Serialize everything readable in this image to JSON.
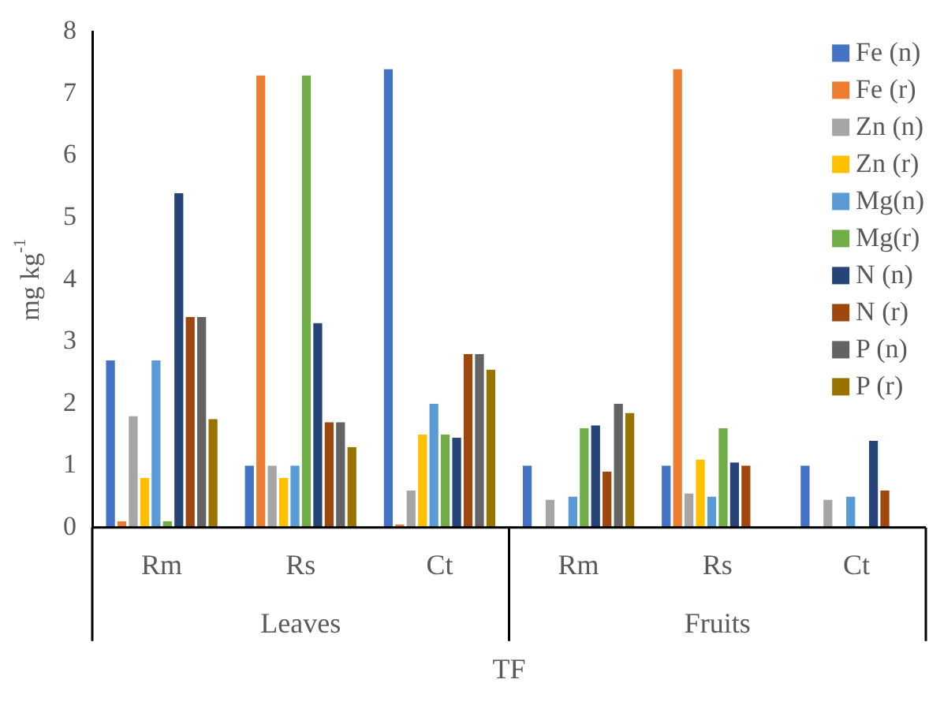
{
  "chart_data": {
    "type": "bar",
    "xlabel": "TF",
    "ylabel": "mg kg$^{-1}$",
    "categories": [
      "Rm",
      "Rs",
      "Ct",
      "Rm",
      "Rs",
      "Ct"
    ],
    "annotations": [
      "Leaves",
      "Fruits"
    ],
    "series": [
      {
        "name": "Fe (n)",
        "color": "#4472c4",
        "values": [
          2.7,
          1.0,
          7.4,
          1.0,
          1.0,
          1.0
        ]
      },
      {
        "name": "Fe (r)",
        "color": "#ed7d31",
        "values": [
          0.1,
          7.3,
          0.05,
          null,
          7.4,
          null
        ]
      },
      {
        "name": "Zn (n)",
        "color": "#a5a5a5",
        "values": [
          1.8,
          1.0,
          0.6,
          0.45,
          0.55,
          0.45
        ]
      },
      {
        "name": "Zn (r)",
        "color": "#ffc000",
        "values": [
          0.8,
          0.8,
          1.5,
          null,
          1.1,
          null
        ]
      },
      {
        "name": "Mg(n)",
        "color": "#5b9bd5",
        "values": [
          2.7,
          1.0,
          2.0,
          0.5,
          0.5,
          0.5
        ]
      },
      {
        "name": "Mg(r)",
        "color": "#70ad47",
        "values": [
          0.1,
          7.3,
          1.5,
          1.6,
          1.6,
          null
        ]
      },
      {
        "name": "N (n)",
        "color": "#264478",
        "values": [
          5.4,
          3.3,
          1.45,
          1.65,
          1.05,
          1.4
        ]
      },
      {
        "name": "N (r)",
        "color": "#9e480e",
        "values": [
          3.4,
          1.7,
          2.8,
          0.9,
          1.0,
          0.6
        ]
      },
      {
        "name": "P (n)",
        "color": "#636363",
        "values": [
          3.4,
          1.7,
          2.8,
          2.0,
          null,
          null
        ]
      },
      {
        "name": "P (r)",
        "color": "#997300",
        "values": [
          1.75,
          1.3,
          2.55,
          1.85,
          null,
          null
        ]
      }
    ],
    "ylim": [
      0,
      8
    ],
    "yticks": [
      0,
      1,
      2,
      3,
      4,
      5,
      6,
      7,
      8
    ],
    "grid": false,
    "legend": "top right"
  }
}
